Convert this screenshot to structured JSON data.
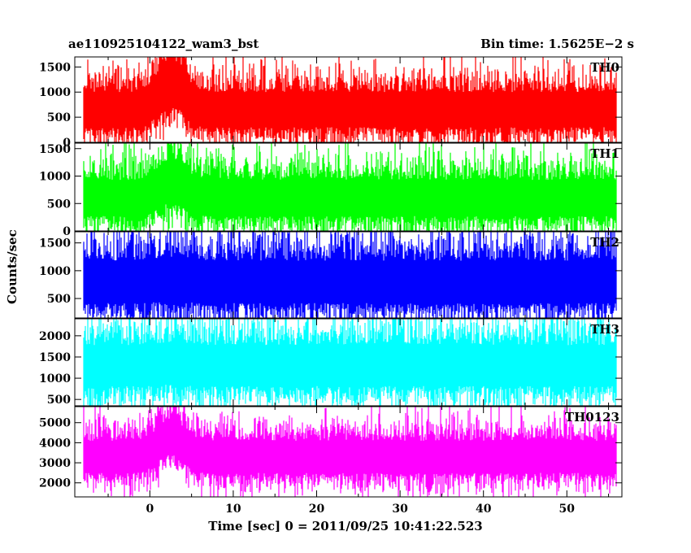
{
  "header": {
    "title_left": "ae110925104122_wam3_bst",
    "title_right": "Bin time: 1.5625E−2 s"
  },
  "chart_data": {
    "type": "line",
    "xlabel": "Time [sec] 0 = 2011/09/25 10:41:22.523",
    "ylabel": "Counts/sec",
    "xlim": [
      -9,
      56.6
    ],
    "x_ticks": [
      0,
      10,
      20,
      30,
      40,
      50
    ],
    "x_range_data": [
      -8,
      56
    ],
    "bin_time": 0.015625,
    "panels": [
      {
        "name": "TH0",
        "color": "#ff0000",
        "ylim": [
          0,
          1700
        ],
        "y_ticks": [
          0,
          500,
          1000,
          1500
        ],
        "baseline_mean": 650,
        "baseline_noise": 350,
        "min_floor": 0,
        "burst": {
          "center": 2.5,
          "width": 3.0,
          "amplitude": 550
        }
      },
      {
        "name": "TH1",
        "color": "#00ff00",
        "ylim": [
          0,
          1600
        ],
        "y_ticks": [
          0,
          500,
          1000,
          1500
        ],
        "baseline_mean": 600,
        "baseline_noise": 330,
        "min_floor": 0,
        "burst": {
          "center": 2.5,
          "width": 3.0,
          "amplitude": 300
        }
      },
      {
        "name": "TH2",
        "color": "#0000ff",
        "ylim": [
          150,
          1700
        ],
        "y_ticks": [
          500,
          1000,
          1500
        ],
        "baseline_mean": 800,
        "baseline_noise": 380,
        "min_floor": 150,
        "burst": {
          "center": 2.5,
          "width": 3.0,
          "amplitude": 60
        }
      },
      {
        "name": "TH3",
        "color": "#00ffff",
        "ylim": [
          350,
          2400
        ],
        "y_ticks": [
          500,
          1000,
          1500,
          2000
        ],
        "baseline_mean": 1300,
        "baseline_noise": 480,
        "min_floor": 350,
        "burst": {
          "center": 2.5,
          "width": 3.0,
          "amplitude": 50
        }
      },
      {
        "name": "TH0123",
        "color": "#ff00ff",
        "ylim": [
          1300,
          5800
        ],
        "y_ticks": [
          2000,
          3000,
          4000,
          5000
        ],
        "baseline_mean": 3300,
        "baseline_noise": 800,
        "min_floor": 1300,
        "burst": {
          "center": 2.5,
          "width": 3.0,
          "amplitude": 1000
        }
      }
    ]
  }
}
